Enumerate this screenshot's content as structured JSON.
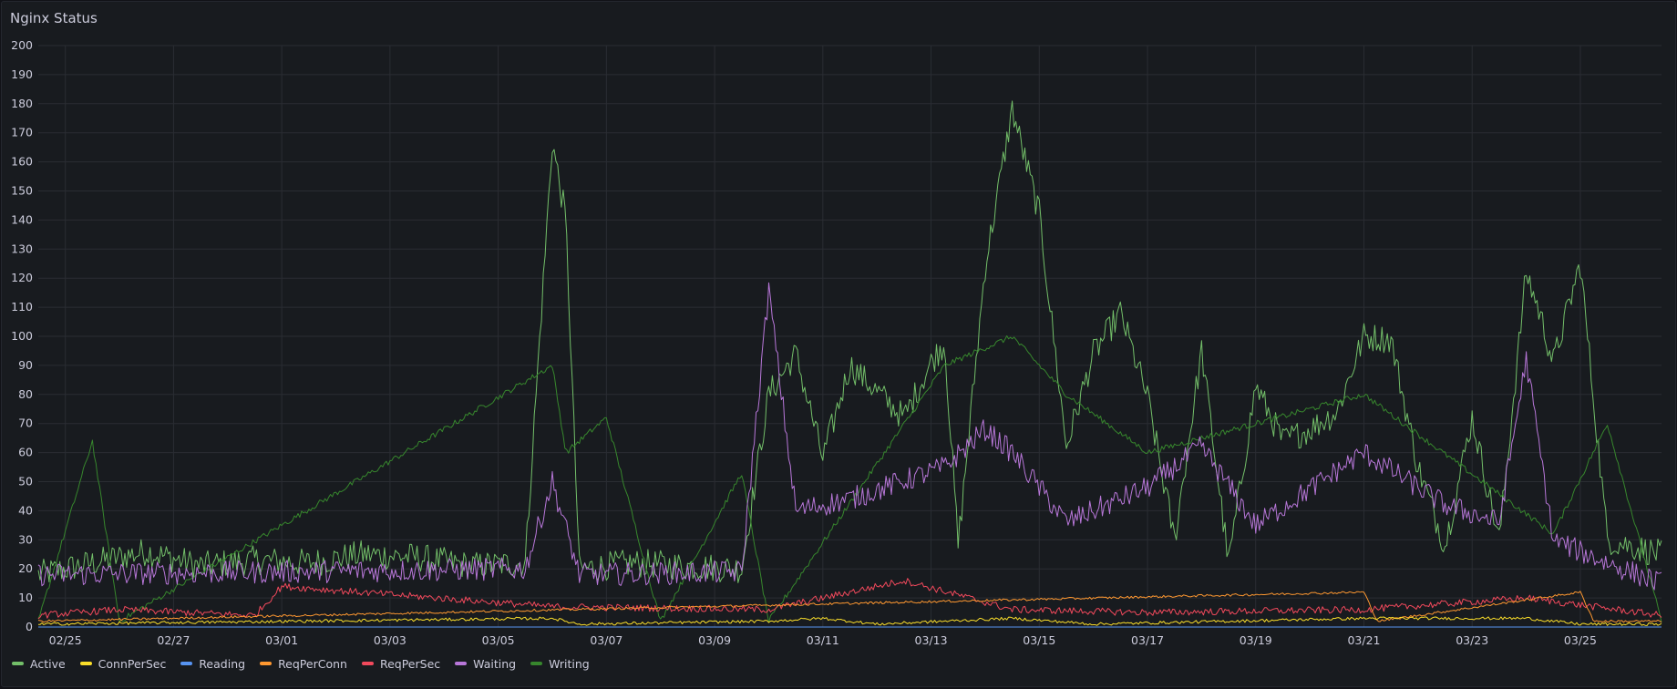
{
  "panel": {
    "title": "Nginx Status"
  },
  "chart_data": {
    "type": "line",
    "ylim": [
      0,
      200
    ],
    "y_ticks": [
      0,
      10,
      20,
      30,
      40,
      50,
      60,
      70,
      80,
      90,
      100,
      110,
      120,
      130,
      140,
      150,
      160,
      170,
      180,
      190,
      200
    ],
    "x_range": [
      "2025-02-24T12:00",
      "2025-03-26T12:00"
    ],
    "x_ticks": [
      {
        "label": "02/25",
        "date": "2025-02-25"
      },
      {
        "label": "02/27",
        "date": "2025-02-27"
      },
      {
        "label": "03/01",
        "date": "2025-03-01"
      },
      {
        "label": "03/03",
        "date": "2025-03-03"
      },
      {
        "label": "03/05",
        "date": "2025-03-05"
      },
      {
        "label": "03/07",
        "date": "2025-03-07"
      },
      {
        "label": "03/09",
        "date": "2025-03-09"
      },
      {
        "label": "03/11",
        "date": "2025-03-11"
      },
      {
        "label": "03/13",
        "date": "2025-03-13"
      },
      {
        "label": "03/15",
        "date": "2025-03-15"
      },
      {
        "label": "03/17",
        "date": "2025-03-17"
      },
      {
        "label": "03/19",
        "date": "2025-03-19"
      },
      {
        "label": "03/21",
        "date": "2025-03-21"
      },
      {
        "label": "03/23",
        "date": "2025-03-23"
      },
      {
        "label": "03/25",
        "date": "2025-03-25"
      }
    ],
    "grid": true,
    "legend_position": "bottom-left",
    "series": [
      {
        "name": "Active",
        "color": "#73bf69",
        "points": [
          [
            "2025-02-24T12:00",
            18
          ],
          [
            "2025-02-25T12:00",
            22
          ],
          [
            "2025-02-26T00:00",
            24
          ],
          [
            "2025-02-26T12:00",
            26
          ],
          [
            "2025-02-27T12:00",
            21
          ],
          [
            "2025-02-28T12:00",
            23
          ],
          [
            "2025-03-01T12:00",
            22
          ],
          [
            "2025-03-02T12:00",
            25
          ],
          [
            "2025-03-03T12:00",
            24
          ],
          [
            "2025-03-04T12:00",
            21
          ],
          [
            "2025-03-05T12:00",
            22
          ],
          [
            "2025-03-06T00:00",
            167
          ],
          [
            "2025-03-06T06:00",
            140
          ],
          [
            "2025-03-06T12:00",
            20
          ],
          [
            "2025-03-07T12:00",
            22
          ],
          [
            "2025-03-08T12:00",
            21
          ],
          [
            "2025-03-09T12:00",
            20
          ],
          [
            "2025-03-10T00:00",
            80
          ],
          [
            "2025-03-10T12:00",
            94
          ],
          [
            "2025-03-11T00:00",
            58
          ],
          [
            "2025-03-11T12:00",
            90
          ],
          [
            "2025-03-12T12:00",
            72
          ],
          [
            "2025-03-13T00:00",
            91
          ],
          [
            "2025-03-13T06:00",
            98
          ],
          [
            "2025-03-13T12:00",
            28
          ],
          [
            "2025-03-14T00:00",
            124
          ],
          [
            "2025-03-14T12:00",
            178
          ],
          [
            "2025-03-15T00:00",
            142
          ],
          [
            "2025-03-15T06:00",
            102
          ],
          [
            "2025-03-15T12:00",
            62
          ],
          [
            "2025-03-16T00:00",
            94
          ],
          [
            "2025-03-16T12:00",
            108
          ],
          [
            "2025-03-17T00:00",
            79
          ],
          [
            "2025-03-17T12:00",
            30
          ],
          [
            "2025-03-18T00:00",
            95
          ],
          [
            "2025-03-18T12:00",
            22
          ],
          [
            "2025-03-19T00:00",
            83
          ],
          [
            "2025-03-19T12:00",
            64
          ],
          [
            "2025-03-20T00:00",
            68
          ],
          [
            "2025-03-20T12:00",
            74
          ],
          [
            "2025-03-21T00:00",
            100
          ],
          [
            "2025-03-21T12:00",
            99
          ],
          [
            "2025-03-22T00:00",
            55
          ],
          [
            "2025-03-22T12:00",
            28
          ],
          [
            "2025-03-23T00:00",
            72
          ],
          [
            "2025-03-23T12:00",
            30
          ],
          [
            "2025-03-24T00:00",
            122
          ],
          [
            "2025-03-24T06:00",
            108
          ],
          [
            "2025-03-24T12:00",
            91
          ],
          [
            "2025-03-25T00:00",
            125
          ],
          [
            "2025-03-25T12:00",
            30
          ],
          [
            "2025-03-26T12:00",
            25
          ]
        ]
      },
      {
        "name": "ConnPerSec",
        "color": "#fade2a",
        "points": [
          [
            "2025-02-24T12:00",
            1
          ],
          [
            "2025-03-06T00:00",
            3
          ],
          [
            "2025-03-06T12:00",
            1
          ],
          [
            "2025-03-10T00:00",
            2
          ],
          [
            "2025-03-11T00:00",
            3
          ],
          [
            "2025-03-12T00:00",
            1
          ],
          [
            "2025-03-14T12:00",
            3
          ],
          [
            "2025-03-16T00:00",
            1
          ],
          [
            "2025-03-21T00:00",
            3
          ],
          [
            "2025-03-24T00:00",
            3
          ],
          [
            "2025-03-25T00:00",
            1
          ],
          [
            "2025-03-26T12:00",
            1
          ]
        ]
      },
      {
        "name": "Reading",
        "color": "#5794f2",
        "points": [
          [
            "2025-02-24T12:00",
            0
          ],
          [
            "2025-03-26T12:00",
            0
          ]
        ]
      },
      {
        "name": "ReqPerConn",
        "color": "#ff9830",
        "points": [
          [
            "2025-02-24T12:00",
            2
          ],
          [
            "2025-03-21T00:00",
            12
          ],
          [
            "2025-03-21T06:00",
            2
          ],
          [
            "2025-03-25T00:00",
            12
          ],
          [
            "2025-03-25T06:00",
            2
          ],
          [
            "2025-03-26T12:00",
            2
          ]
        ]
      },
      {
        "name": "ReqPerSec",
        "color": "#f2495c",
        "points": [
          [
            "2025-02-24T12:00",
            4
          ],
          [
            "2025-02-26T00:00",
            6
          ],
          [
            "2025-02-28T12:00",
            4
          ],
          [
            "2025-03-01T00:00",
            14
          ],
          [
            "2025-03-06T00:00",
            7
          ],
          [
            "2025-03-10T00:00",
            6
          ],
          [
            "2025-03-12T12:00",
            16
          ],
          [
            "2025-03-14T12:00",
            6
          ],
          [
            "2025-03-17T00:00",
            5
          ],
          [
            "2025-03-21T00:00",
            6
          ],
          [
            "2025-03-24T00:00",
            10
          ],
          [
            "2025-03-26T12:00",
            4
          ]
        ]
      },
      {
        "name": "Waiting",
        "color": "#b877d9",
        "points": [
          [
            "2025-02-24T12:00",
            18
          ],
          [
            "2025-03-05T12:00",
            20
          ],
          [
            "2025-03-06T00:00",
            50
          ],
          [
            "2025-03-06T12:00",
            18
          ],
          [
            "2025-03-09T12:00",
            19
          ],
          [
            "2025-03-10T00:00",
            116
          ],
          [
            "2025-03-10T12:00",
            40
          ],
          [
            "2025-03-11T12:00",
            44
          ],
          [
            "2025-03-13T06:00",
            55
          ],
          [
            "2025-03-14T00:00",
            68
          ],
          [
            "2025-03-14T12:00",
            60
          ],
          [
            "2025-03-15T12:00",
            36
          ],
          [
            "2025-03-17T00:00",
            48
          ],
          [
            "2025-03-18T00:00",
            62
          ],
          [
            "2025-03-19T00:00",
            35
          ],
          [
            "2025-03-21T00:00",
            60
          ],
          [
            "2025-03-22T12:00",
            42
          ],
          [
            "2025-03-23T12:00",
            36
          ],
          [
            "2025-03-24T00:00",
            92
          ],
          [
            "2025-03-24T12:00",
            30
          ],
          [
            "2025-03-25T12:00",
            22
          ],
          [
            "2025-03-26T12:00",
            15
          ]
        ]
      },
      {
        "name": "Writing",
        "color": "#37872d",
        "points": [
          [
            "2025-02-24T12:00",
            2
          ],
          [
            "2025-02-25T12:00",
            64
          ],
          [
            "2025-02-26T00:00",
            2
          ],
          [
            "2025-03-06T00:00",
            90
          ],
          [
            "2025-03-06T06:00",
            60
          ],
          [
            "2025-03-07T00:00",
            72
          ],
          [
            "2025-03-08T00:00",
            2
          ],
          [
            "2025-03-09T12:00",
            53
          ],
          [
            "2025-03-10T00:00",
            2
          ],
          [
            "2025-03-13T06:00",
            90
          ],
          [
            "2025-03-14T12:00",
            100
          ],
          [
            "2025-03-15T12:00",
            80
          ],
          [
            "2025-03-17T00:00",
            60
          ],
          [
            "2025-03-21T00:00",
            80
          ],
          [
            "2025-03-24T12:00",
            32
          ],
          [
            "2025-03-25T12:00",
            70
          ],
          [
            "2025-03-26T12:00",
            2
          ]
        ]
      }
    ]
  }
}
